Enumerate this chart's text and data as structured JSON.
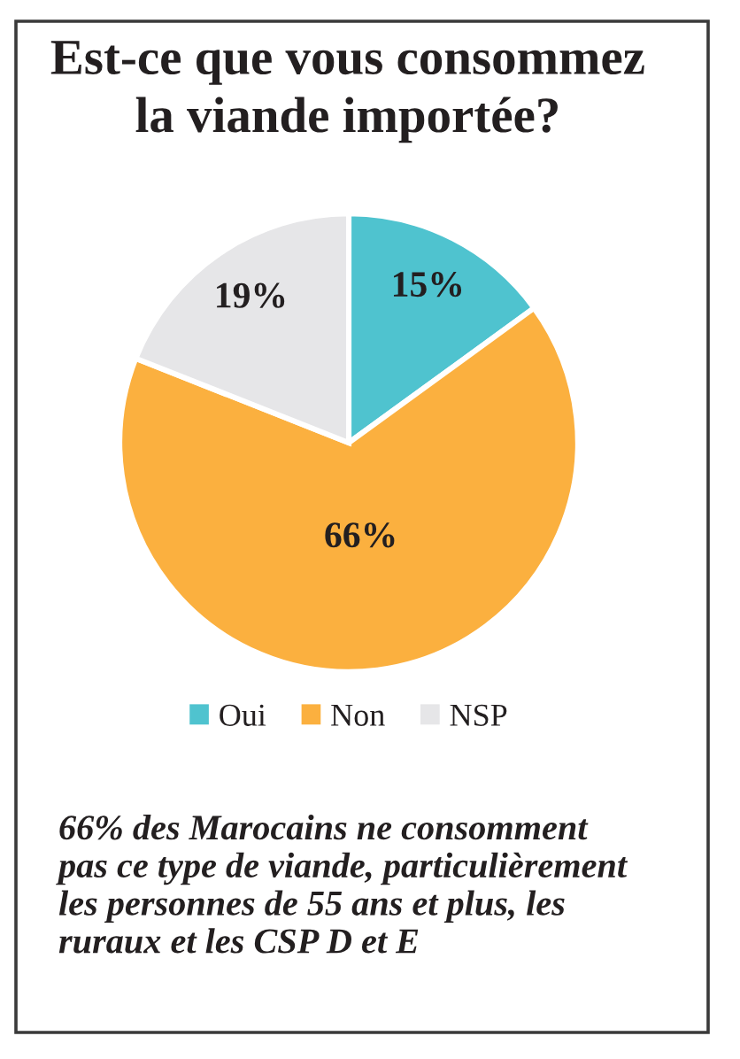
{
  "chart_data": {
    "type": "pie",
    "title": "Est-ce que vous consommez\nla viande importée?",
    "categories": [
      "Oui",
      "Non",
      "NSP"
    ],
    "values": [
      15,
      66,
      19
    ],
    "colors": [
      "#4fc3cf",
      "#fbb03f",
      "#e6e6e8"
    ],
    "value_labels": [
      "15%",
      "66%",
      "19%"
    ],
    "legend": "bottom",
    "annotations": [
      "66% des Marocains ne consomment\npas ce type de viande, particulièrement\nles personnes de 55 ans et plus, les\nruraux et les CSP D et E"
    ]
  }
}
